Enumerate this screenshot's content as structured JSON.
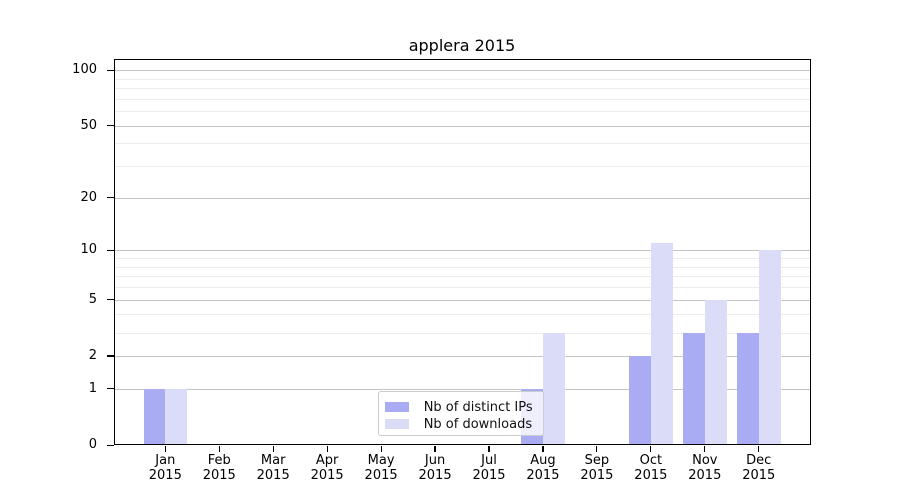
{
  "title": "applera 2015",
  "colors": {
    "distinct_ips": "#a9abf3",
    "downloads": "#dbdcf8",
    "grid_major": "#c4c4c4",
    "grid_minor": "#ececec",
    "axis": "#000000",
    "text": "#000000",
    "legend_border": "#cccccc"
  },
  "legend": {
    "items": [
      {
        "label": "Nb of distinct IPs",
        "color_key": "distinct_ips"
      },
      {
        "label": "Nb of downloads",
        "color_key": "downloads"
      }
    ]
  },
  "y_axis": {
    "tick_values": [
      0,
      1,
      2,
      5,
      10,
      20,
      50,
      100
    ],
    "minor_values": [
      3,
      4,
      6,
      7,
      8,
      9,
      30,
      40,
      60,
      70,
      80,
      90
    ],
    "max_value": 114.3,
    "scale": "log10(value+1)"
  },
  "x_axis": {
    "months": [
      "Jan",
      "Feb",
      "Mar",
      "Apr",
      "May",
      "Jun",
      "Jul",
      "Aug",
      "Sep",
      "Oct",
      "Nov",
      "Dec"
    ],
    "year": "2015"
  },
  "chart_data": {
    "type": "bar",
    "title": "applera 2015",
    "categories": [
      "Jan 2015",
      "Feb 2015",
      "Mar 2015",
      "Apr 2015",
      "May 2015",
      "Jun 2015",
      "Jul 2015",
      "Aug 2015",
      "Sep 2015",
      "Oct 2015",
      "Nov 2015",
      "Dec 2015"
    ],
    "series": [
      {
        "name": "Nb of distinct IPs",
        "color_key": "distinct_ips",
        "values": [
          1,
          0,
          0,
          0,
          0,
          0,
          0,
          1,
          0,
          2,
          3,
          3
        ]
      },
      {
        "name": "Nb of downloads",
        "color_key": "downloads",
        "values": [
          1,
          0,
          0,
          0,
          0,
          0,
          0,
          3,
          0,
          11,
          5,
          10
        ]
      }
    ],
    "xlabel": "",
    "ylabel": "",
    "yticks": [
      0,
      1,
      2,
      5,
      10,
      20,
      50,
      100
    ],
    "ylim": [
      0,
      114
    ],
    "yscale": "log10(y+1)",
    "grid": "horizontal",
    "legend_position": "inside-bottom-center"
  }
}
